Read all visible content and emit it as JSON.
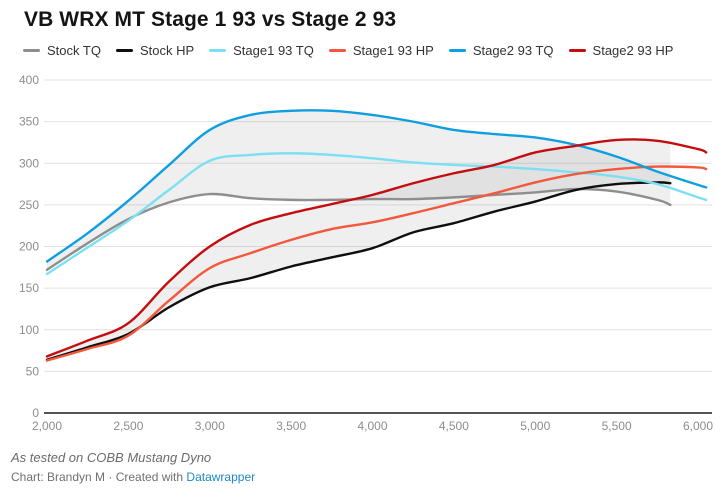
{
  "title": "VB WRX MT Stage 1 93 vs Stage 2 93",
  "footer": {
    "note": "As tested on COBB Mustang Dyno",
    "credit_prefix": "Chart: Brandyn M · Created with ",
    "credit_link": "Datawrapper"
  },
  "style": {
    "grid_color": "#e2e2e2",
    "axis_color": "#1a1a1a",
    "tick_label_color": "#8d8d8d",
    "band_fill": "rgba(130,130,130,0.13)",
    "link_color": "#1f87c9",
    "title_color": "#141414",
    "legend_text_color": "#333333"
  },
  "chart_data": {
    "type": "line",
    "title": "VB WRX MT Stage 1 93 vs Stage 2 93",
    "xlabel": "",
    "ylabel": "",
    "grid": "horizontal",
    "legend_position": "top",
    "xlim": [
      2000,
      6050
    ],
    "ylim": [
      0,
      400
    ],
    "y_ticks": [
      0,
      50,
      100,
      150,
      200,
      250,
      300,
      350,
      400
    ],
    "x_tick_values": [
      2000,
      2500,
      3000,
      3500,
      4000,
      4500,
      5000,
      5500,
      6000
    ],
    "x_tick_labels": [
      "2,000",
      "2,500",
      "3,000",
      "3,500",
      "4,000",
      "4,500",
      "5,000",
      "5,500",
      "6,000"
    ],
    "series": [
      {
        "name": "Stock TQ",
        "color": "#8e8e8e",
        "x": [
          2000,
          2250,
          2500,
          2750,
          3000,
          3250,
          3500,
          3750,
          4000,
          4250,
          4500,
          4750,
          5000,
          5250,
          5500,
          5750,
          5830
        ],
        "values": [
          172,
          204,
          233,
          253,
          263,
          258,
          256,
          256,
          257,
          257,
          259,
          262,
          265,
          269,
          266,
          256,
          250
        ]
      },
      {
        "name": "Stock HP",
        "color": "#0f0f0f",
        "x": [
          2000,
          2250,
          2500,
          2750,
          3000,
          3250,
          3500,
          3750,
          4000,
          4250,
          4500,
          4750,
          5000,
          5250,
          5500,
          5750,
          5830
        ],
        "values": [
          64,
          79,
          95,
          127,
          151,
          162,
          176,
          187,
          198,
          217,
          228,
          242,
          254,
          268,
          275,
          277,
          276
        ]
      },
      {
        "name": "Stage1 93 TQ",
        "color": "#7be0f2",
        "x": [
          2000,
          2250,
          2500,
          2750,
          3000,
          3250,
          3500,
          3750,
          4000,
          4250,
          4500,
          4750,
          5000,
          5250,
          5500,
          5750,
          6000,
          6050
        ],
        "values": [
          167,
          199,
          231,
          268,
          303,
          310,
          312,
          310,
          306,
          301,
          298,
          296,
          293,
          289,
          284,
          275,
          259,
          256
        ]
      },
      {
        "name": "Stage1 93 HP",
        "color": "#f4573b",
        "x": [
          2000,
          2250,
          2500,
          2750,
          3000,
          3250,
          3500,
          3750,
          4000,
          4250,
          4500,
          4750,
          5000,
          5250,
          5500,
          5750,
          6000,
          6050
        ],
        "values": [
          63,
          77,
          93,
          135,
          174,
          192,
          208,
          221,
          229,
          240,
          252,
          264,
          277,
          287,
          293,
          296,
          295,
          293
        ]
      },
      {
        "name": "Stage2 93 TQ",
        "color": "#0f9fe0",
        "x": [
          2000,
          2250,
          2500,
          2750,
          3000,
          3250,
          3500,
          3750,
          4000,
          4250,
          4500,
          4750,
          5000,
          5250,
          5500,
          5750,
          6000,
          6050
        ],
        "values": [
          182,
          216,
          255,
          298,
          340,
          358,
          363,
          363,
          358,
          350,
          340,
          335,
          331,
          322,
          308,
          290,
          274,
          271
        ]
      },
      {
        "name": "Stage2 93 HP",
        "color": "#c50d0f",
        "x": [
          2000,
          2250,
          2500,
          2750,
          3000,
          3250,
          3500,
          3750,
          4000,
          4250,
          4500,
          4750,
          5000,
          5250,
          5500,
          5750,
          6000,
          6050
        ],
        "values": [
          68,
          87,
          108,
          158,
          200,
          226,
          240,
          251,
          262,
          276,
          288,
          298,
          313,
          321,
          328,
          327,
          317,
          313
        ]
      }
    ],
    "bands": [
      {
        "upper": 4,
        "lower": 0
      },
      {
        "upper": 5,
        "lower": 1
      }
    ]
  }
}
